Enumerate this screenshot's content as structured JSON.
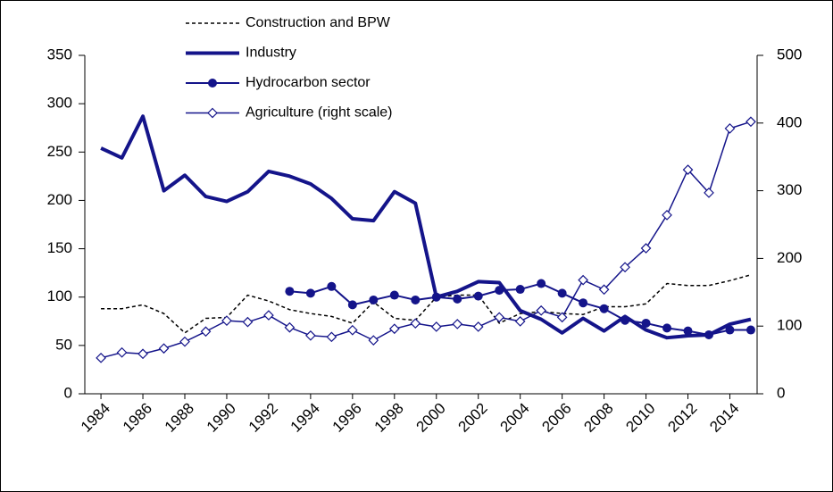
{
  "chart_data": {
    "type": "line",
    "x": [
      1984,
      1985,
      1986,
      1987,
      1988,
      1989,
      1990,
      1991,
      1992,
      1993,
      1994,
      1995,
      1996,
      1997,
      1998,
      1999,
      2000,
      2001,
      2002,
      2003,
      2004,
      2005,
      2006,
      2007,
      2008,
      2009,
      2010,
      2011,
      2012,
      2013,
      2014,
      2015
    ],
    "xlim": [
      1983.23,
      2015.3
    ],
    "xticks": [
      1984,
      1986,
      1988,
      1990,
      1992,
      1994,
      1996,
      1998,
      2000,
      2002,
      2004,
      2006,
      2008,
      2010,
      2012,
      2014
    ],
    "ylim": [
      0,
      350
    ],
    "yticks": [
      0,
      50,
      100,
      150,
      200,
      250,
      300,
      350
    ],
    "y2lim": [
      0,
      500
    ],
    "y2ticks": [
      0,
      100,
      200,
      300,
      400,
      500
    ],
    "legend": "upper left",
    "series": [
      {
        "name": "Construction and BPW",
        "color": "#000000",
        "width": 1.5,
        "dash": true,
        "values": [
          88,
          88,
          92,
          83,
          63,
          78,
          79,
          102,
          96,
          87,
          83,
          80,
          73,
          95,
          78,
          76,
          100,
          102,
          102,
          73,
          83,
          85,
          83,
          82,
          90,
          90,
          93,
          114,
          112,
          112,
          117,
          123
        ]
      },
      {
        "name": "Industry",
        "color": "#14148a",
        "width": 4,
        "values": [
          254,
          244,
          287,
          210,
          226,
          204,
          199,
          209,
          230,
          225,
          217,
          202,
          181,
          179,
          209,
          197,
          100,
          106,
          116,
          115,
          86,
          77,
          63,
          78,
          65,
          80,
          66,
          58,
          60,
          61,
          72,
          77
        ]
      },
      {
        "name": "Hydrocarbon sector",
        "color": "#14148a",
        "width": 2,
        "marker": "circle",
        "values": [
          null,
          null,
          null,
          null,
          null,
          null,
          null,
          null,
          null,
          106,
          104,
          111,
          92,
          97,
          102,
          97,
          100,
          98,
          101,
          107,
          108,
          114,
          104,
          94,
          88,
          76,
          73,
          68,
          65,
          61,
          66,
          66
        ]
      },
      {
        "name": "Agriculture (right scale)",
        "color": "#14148a",
        "width": 1.5,
        "marker": "diamond",
        "axis": "y2",
        "values": [
          53,
          61,
          59,
          67,
          77,
          92,
          108,
          106,
          116,
          98,
          86,
          84,
          94,
          79,
          96,
          104,
          99,
          103,
          99,
          113,
          107,
          123,
          113,
          168,
          154,
          187,
          215,
          264,
          331,
          297,
          392,
          402
        ]
      }
    ]
  }
}
